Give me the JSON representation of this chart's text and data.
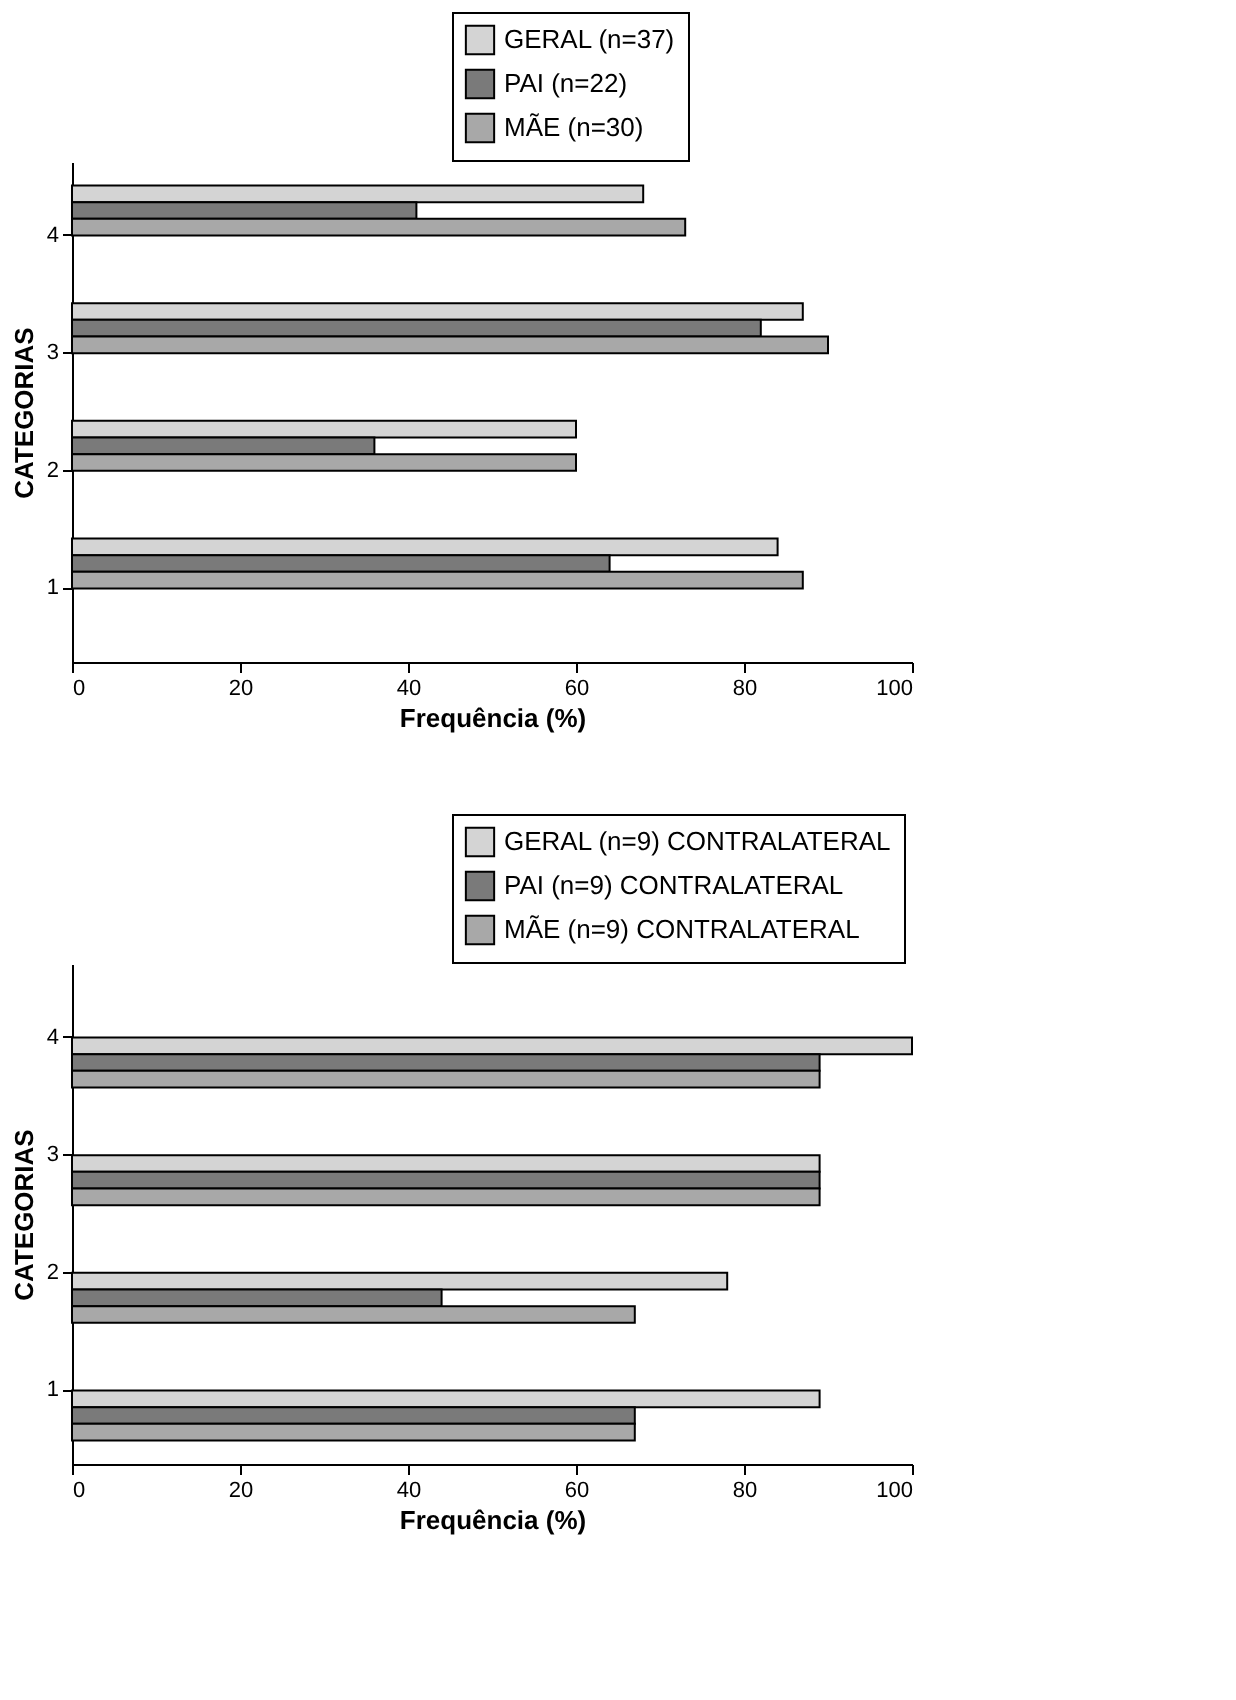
{
  "chart_data": [
    {
      "type": "bar",
      "orientation": "horizontal",
      "categories": [
        "4",
        "3",
        "2",
        "1"
      ],
      "xlabel": "Frequência (%)",
      "ylabel": "CATEGORIAS",
      "xlim": [
        0,
        100
      ],
      "xticks": [
        0,
        20,
        40,
        60,
        80,
        100
      ],
      "grid": false,
      "legend": "top right",
      "series": [
        {
          "name": "GERAL (n=37)",
          "color": "#d4d4d4",
          "values": [
            68,
            87,
            60,
            84
          ]
        },
        {
          "name": "PAI (n=22)",
          "color": "#7a7a7a",
          "values": [
            41,
            82,
            36,
            64
          ]
        },
        {
          "name": "MÃE (n=30)",
          "color": "#a8a8a8",
          "values": [
            73,
            90,
            60,
            87
          ]
        }
      ]
    },
    {
      "type": "bar",
      "orientation": "horizontal",
      "categories": [
        "4",
        "3",
        "2",
        "1"
      ],
      "xlabel": "Frequência (%)",
      "ylabel": "CATEGORIAS",
      "xlim": [
        0,
        100
      ],
      "xticks": [
        0,
        20,
        40,
        60,
        80,
        100
      ],
      "grid": false,
      "legend": "top right",
      "series": [
        {
          "name": "GERAL (n=9) CONTRALATERAL",
          "color": "#d4d4d4",
          "values": [
            100,
            89,
            78,
            89
          ]
        },
        {
          "name": "PAI (n=9) CONTRALATERAL",
          "color": "#7a7a7a",
          "values": [
            89,
            89,
            44,
            67
          ]
        },
        {
          "name": "MÃE (n=9) CONTRALATERAL",
          "color": "#a8a8a8",
          "values": [
            89,
            89,
            67,
            67
          ]
        }
      ]
    }
  ]
}
